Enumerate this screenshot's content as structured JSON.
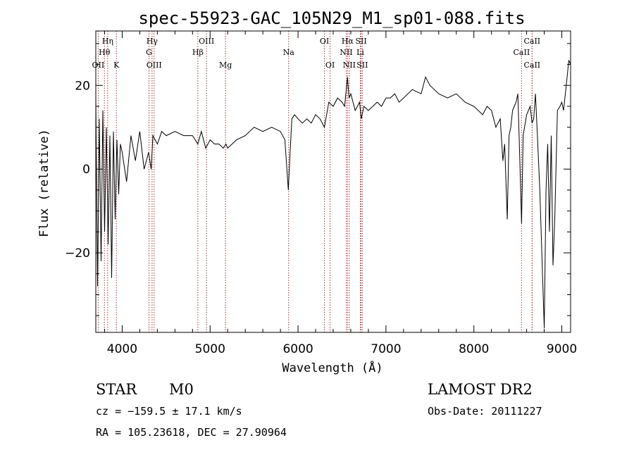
{
  "chart_data": {
    "type": "line",
    "title": "spec-55923-GAC_105N29_M1_sp01-088.fits",
    "xlabel": "Wavelength (Å)",
    "ylabel": "Flux (relative)",
    "xlim": [
      3700,
      9100
    ],
    "ylim": [
      -39,
      33
    ],
    "xticks": [
      4000,
      5000,
      6000,
      7000,
      8000,
      9000
    ],
    "xtick_labels": [
      "4000",
      "5000",
      "6000",
      "7000",
      "8000",
      "9000"
    ],
    "yticks": [
      -20,
      0,
      20
    ],
    "ytick_labels": [
      "−20",
      "0",
      "20"
    ],
    "grid": false,
    "series": [
      {
        "x": [
          3700,
          3720,
          3740,
          3760,
          3780,
          3800,
          3820,
          3840,
          3860,
          3880,
          3900,
          3920,
          3940,
          3960,
          3980,
          4000,
          4050,
          4100,
          4150,
          4200,
          4250,
          4300,
          4330,
          4350,
          4400,
          4450,
          4500,
          4600,
          4700,
          4800,
          4860,
          4900,
          4950,
          5000,
          5050,
          5100,
          5150,
          5180,
          5200,
          5250,
          5300,
          5400,
          5500,
          5600,
          5700,
          5800,
          5850,
          5890,
          5910,
          5930,
          5960,
          6000,
          6050,
          6100,
          6150,
          6200,
          6250,
          6300,
          6350,
          6400,
          6450,
          6500,
          6530,
          6563,
          6580,
          6600,
          6650,
          6700,
          6720,
          6750,
          6800,
          6850,
          6900,
          6950,
          7000,
          7050,
          7100,
          7150,
          7200,
          7300,
          7400,
          7450,
          7500,
          7550,
          7600,
          7700,
          7800,
          7900,
          8000,
          8100,
          8150,
          8200,
          8250,
          8300,
          8330,
          8350,
          8380,
          8400,
          8420,
          8440,
          8460,
          8480,
          8500,
          8520,
          8542,
          8560,
          8600,
          8640,
          8662,
          8680,
          8700,
          8720,
          8750,
          8780,
          8800,
          8820,
          8840,
          8860,
          8880,
          8900,
          8920,
          8950,
          8980,
          9000,
          9020,
          9050,
          9080,
          9100
        ],
        "y": [
          17,
          -28,
          12,
          -22,
          14,
          -15,
          10,
          -18,
          8,
          -26,
          9,
          -12,
          7,
          -6,
          6,
          4,
          -3,
          8,
          2,
          9,
          0,
          4,
          0,
          8,
          6,
          9,
          8,
          9,
          8,
          8,
          6,
          9,
          5,
          7,
          6,
          6,
          5,
          6,
          5,
          6,
          7,
          8,
          10,
          9,
          10,
          9,
          7,
          -5,
          4,
          12,
          13,
          12,
          11,
          12,
          11,
          13,
          12,
          10,
          16,
          15,
          17,
          16,
          15,
          22,
          17,
          18,
          14,
          16,
          12,
          15,
          14,
          15,
          16,
          15,
          17,
          17,
          18,
          16,
          17,
          19,
          18,
          22,
          20,
          19,
          18,
          17,
          18,
          16,
          15,
          13,
          15,
          14,
          10,
          12,
          2,
          6,
          -12,
          8,
          10,
          14,
          15,
          16,
          18,
          4,
          -13,
          8,
          13,
          15,
          11,
          12,
          18,
          9,
          -5,
          -25,
          -38,
          -5,
          6,
          -15,
          8,
          -23,
          -12,
          14,
          15,
          16,
          14,
          20,
          26,
          25
        ]
      }
    ],
    "emission_lines": [
      {
        "label": "Hη",
        "x": 3835,
        "row": 1
      },
      {
        "label": "Hθ",
        "x": 3798,
        "row": 2
      },
      {
        "label": "OII",
        "x": 3727,
        "row": 3
      },
      {
        "label": "K",
        "x": 3934,
        "row": 3
      },
      {
        "label": "Hγ",
        "x": 4340,
        "row": 1
      },
      {
        "label": "G",
        "x": 4305,
        "row": 2
      },
      {
        "label": "OIII",
        "x": 4363,
        "row": 3
      },
      {
        "label": "OIII",
        "x": 4959,
        "row": 1
      },
      {
        "label": "Hβ",
        "x": 4861,
        "row": 2
      },
      {
        "label": "Mg",
        "x": 5175,
        "row": 3
      },
      {
        "label": "Na",
        "x": 5893,
        "row": 2
      },
      {
        "label": "OI",
        "x": 6300,
        "row": 1
      },
      {
        "label": "OI",
        "x": 6364,
        "row": 3
      },
      {
        "label": "Hα",
        "x": 6563,
        "row": 1
      },
      {
        "label": "SII",
        "x": 6717,
        "row": 1
      },
      {
        "label": "NII",
        "x": 6548,
        "row": 2
      },
      {
        "label": "Li",
        "x": 6708,
        "row": 2
      },
      {
        "label": "NII",
        "x": 6583,
        "row": 3
      },
      {
        "label": "SII",
        "x": 6731,
        "row": 3
      },
      {
        "label": "CaII",
        "x": 8662,
        "row": 1
      },
      {
        "label": "CaII",
        "x": 8542,
        "row": 2
      },
      {
        "label": "CaII",
        "x": 8662,
        "row": 3
      }
    ]
  },
  "info": {
    "class": "STAR",
    "subclass": "M0",
    "cz": "cz = −159.5 ± 17.1 km/s",
    "coords": "RA = 105.23618, DEC =  27.90964",
    "survey": "LAMOST DR2",
    "obs_date": "Obs-Date: 20111227"
  }
}
